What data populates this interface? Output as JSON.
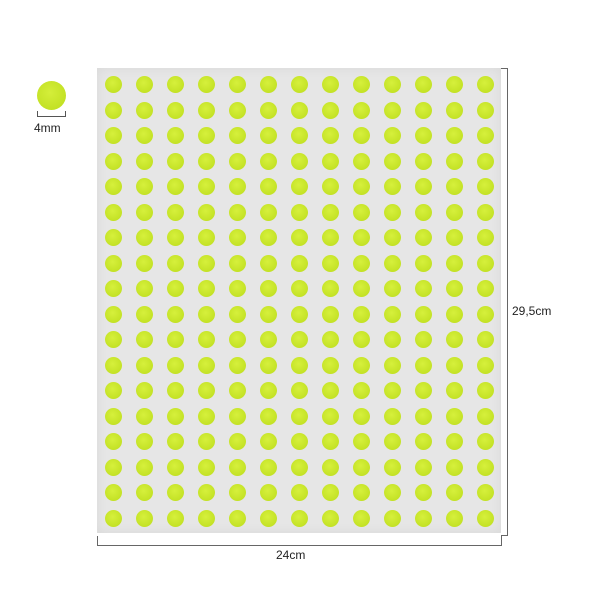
{
  "sample": {
    "size_label": "4mm"
  },
  "sheet": {
    "width_label": "24cm",
    "height_label": "29,5cm"
  },
  "dot_grid": {
    "rows": 18,
    "columns": 13
  },
  "colors": {
    "dot": "#c8e62a",
    "sheet": "#e6e6e6",
    "dimension_line": "#666666"
  }
}
